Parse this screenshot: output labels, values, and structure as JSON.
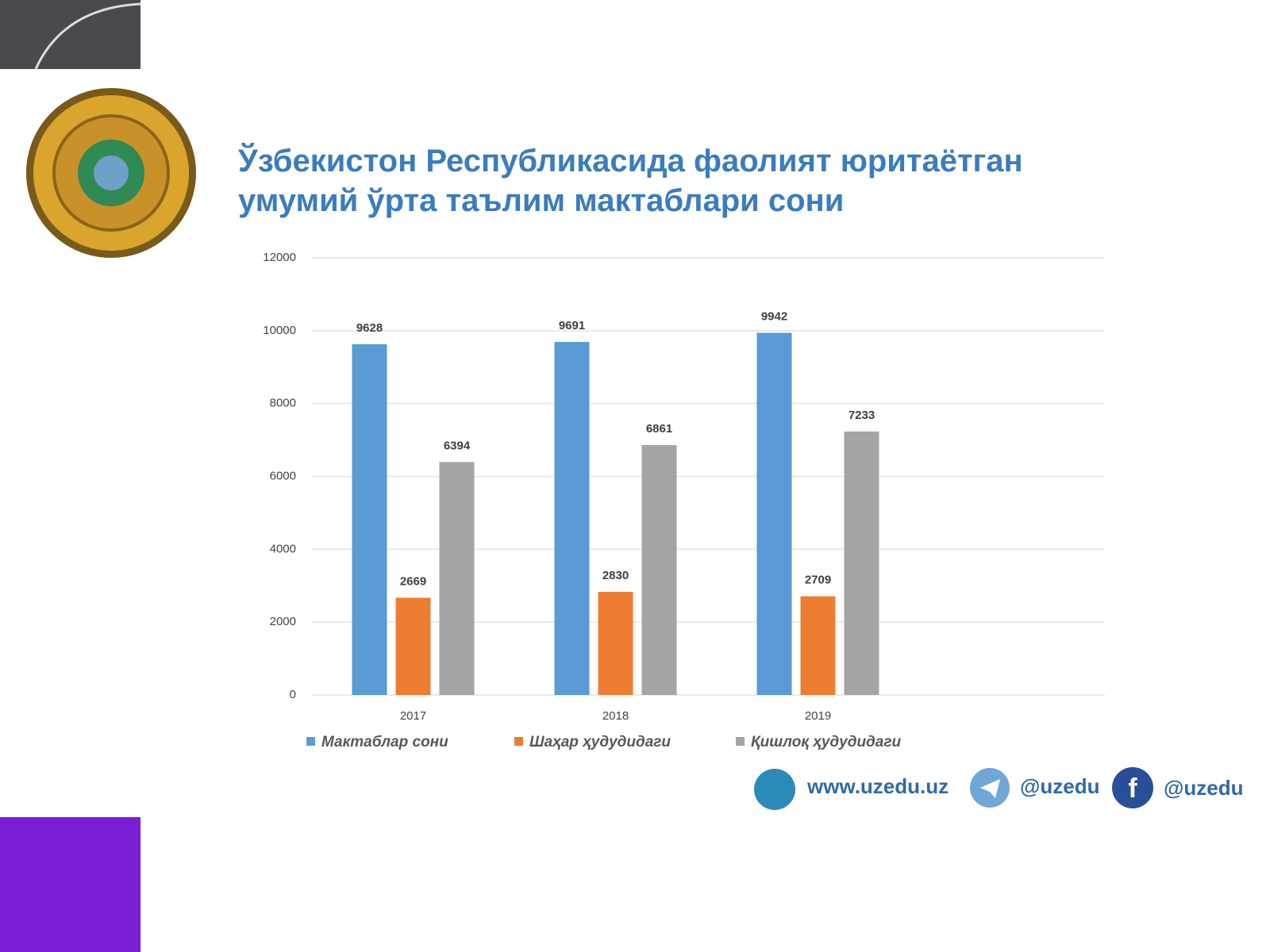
{
  "chart_data": {
    "type": "bar",
    "title": "Ўзбекистон Республикасида фаолият юритаётган умумий ўрта таълим мактаблари сони",
    "categories": [
      "2017",
      "2018",
      "2019"
    ],
    "series": [
      {
        "name": "Мактаблар сони",
        "color": "#5b9bd5",
        "values": [
          9628,
          9691,
          9942
        ]
      },
      {
        "name": "Шаҳар ҳудудидаги",
        "color": "#ed7d31",
        "values": [
          2669,
          2830,
          2709
        ]
      },
      {
        "name": "Қишлоқ ҳудудидаги",
        "color": "#a5a5a5",
        "values": [
          6394,
          6861,
          7233
        ]
      }
    ],
    "ylim": [
      0,
      12000
    ],
    "yticks": [
      0,
      2000,
      4000,
      6000,
      8000,
      10000,
      12000
    ],
    "grid": true
  },
  "footer": {
    "website": "www.uzedu.uz",
    "telegram": "@uzedu",
    "facebook": "@uzedu"
  }
}
